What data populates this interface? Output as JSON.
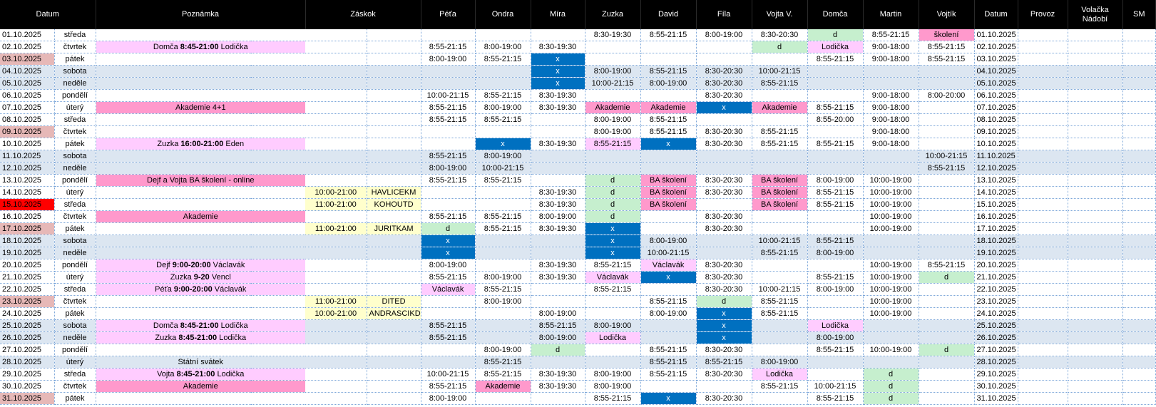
{
  "headers": [
    "Datum",
    "Poznámka",
    "Záskok",
    "Péťa",
    "Ondra",
    "Míra",
    "Zuzka",
    "David",
    "Fíla",
    "Vojta V.",
    "Domča",
    "Martin",
    "Vojtík",
    "Datum",
    "Provoz",
    "Volačka\nNádobí",
    "SM"
  ],
  "colors": {
    "header_bg": "#000000",
    "weekend_bg": "#dce6f1",
    "red": "#ff0000",
    "date_highlight": "#e6b8b7",
    "pink": "#ff99cc",
    "light_pink": "#ffccff",
    "green": "#c6efce",
    "blue": "#0070c0",
    "yellow": "#ffffcc",
    "grid": "#7da7d9"
  },
  "rows": [
    {
      "date": "01.10.2025",
      "day": "středa",
      "cells": [
        "",
        "",
        "",
        "8:30-19:30",
        "8:55-21:15",
        "8:00-19:00",
        "8:30-20:30",
        "d",
        "8:55-21:15",
        "školení",
        ""
      ],
      "styles": [
        "",
        "",
        "",
        "",
        "",
        "",
        "",
        "g",
        "",
        "p",
        ""
      ]
    },
    {
      "date": "02.10.2025",
      "day": "čtvrtek",
      "note": {
        "a": "Domča ",
        "b": "8:45-21:00",
        "c": " Lodička",
        "cls": "c-lpink"
      },
      "cells": [
        "8:55-21:15",
        "8:00-19:00",
        "8:30-19:30",
        "",
        "",
        "",
        "d",
        "Lodička",
        "9:00-18:00",
        "8:55-21:15"
      ],
      "styles": [
        "",
        "",
        "",
        "",
        "",
        "",
        "g",
        "lp",
        "",
        ""
      ]
    },
    {
      "date": "03.10.2025",
      "day": "pátek",
      "dateHL": "hl-date",
      "cells": [
        "8:00-19:00",
        "8:55-21:15",
        "x",
        "",
        "",
        "",
        "",
        "8:55-21:15",
        "9:00-18:00",
        "8:55-21:15"
      ],
      "styles": [
        "",
        "",
        "b",
        "",
        "",
        "",
        "",
        "",
        "",
        ""
      ]
    },
    {
      "date": "04.10.2025",
      "day": "sobota",
      "weekend": true,
      "cells": [
        "",
        "",
        "x",
        "8:00-19:00",
        "8:55-21:15",
        "8:30-20:30",
        "10:00-21:15",
        "",
        "",
        ""
      ],
      "styles": [
        "",
        "",
        "b",
        "",
        "",
        "",
        "",
        "",
        "",
        ""
      ]
    },
    {
      "date": "05.10.2025",
      "day": "neděle",
      "weekend": true,
      "cells": [
        "",
        "",
        "x",
        "10:00-21:15",
        "8:00-19:00",
        "8:30-20:30",
        "8:55-21:15",
        "",
        "",
        ""
      ],
      "styles": [
        "",
        "",
        "b",
        "",
        "",
        "",
        "",
        "",
        "",
        ""
      ]
    },
    {
      "date": "06.10.2025",
      "day": "pondělí",
      "cells": [
        "10:00-21:15",
        "8:55-21:15",
        "8:30-19:30",
        "",
        "",
        "8:30-20:30",
        "",
        "",
        "9:00-18:00",
        "8:00-20:00"
      ],
      "styles": [
        "",
        "",
        "",
        "",
        "",
        "",
        "",
        "",
        "",
        ""
      ]
    },
    {
      "date": "07.10.2025",
      "day": "úterý",
      "note": {
        "a": "Akademie 4+1",
        "b": "",
        "c": "",
        "cls": "c-pink"
      },
      "cells": [
        "8:55-21:15",
        "8:00-19:00",
        "8:30-19:30",
        "Akademie",
        "Akademie",
        "x",
        "Akademie",
        "8:55-21:15",
        "9:00-18:00",
        ""
      ],
      "styles": [
        "",
        "",
        "",
        "p",
        "p",
        "b",
        "p",
        "",
        "",
        ""
      ]
    },
    {
      "date": "08.10.2025",
      "day": "středa",
      "cells": [
        "8:55-21:15",
        "8:55-21:15",
        "",
        "8:00-19:00",
        "8:55-21:15",
        "",
        "",
        "8:55-20:00",
        "9:00-18:00",
        ""
      ],
      "styles": [
        "",
        "",
        "",
        "",
        "",
        "",
        "",
        "",
        "",
        ""
      ]
    },
    {
      "date": "09.10.2025",
      "day": "čtvrtek",
      "dateHL": "hl-date",
      "cells": [
        "",
        "",
        "",
        "8:00-19:00",
        "8:55-21:15",
        "8:30-20:30",
        "8:55-21:15",
        "",
        "9:00-18:00",
        ""
      ],
      "styles": [
        "",
        "",
        "",
        "",
        "",
        "",
        "",
        "",
        "",
        ""
      ]
    },
    {
      "date": "10.10.2025",
      "day": "pátek",
      "note": {
        "a": "Zuzka ",
        "b": "16:00-21:00",
        "c": " Eden",
        "cls": "c-lpink"
      },
      "cells": [
        "",
        "x",
        "8:30-19:30",
        "8:55-21:15",
        "x",
        "8:30-20:30",
        "8:55-21:15",
        "8:55-21:15",
        "9:00-18:00",
        ""
      ],
      "styles": [
        "",
        "b",
        "",
        "lp",
        "b",
        "",
        "",
        "",
        "",
        ""
      ]
    },
    {
      "date": "11.10.2025",
      "day": "sobota",
      "weekend": true,
      "cells": [
        "8:55-21:15",
        "8:00-19:00",
        "",
        "",
        "",
        "",
        "",
        "",
        "",
        "10:00-21:15"
      ],
      "styles": [
        "",
        "",
        "",
        "",
        "",
        "",
        "",
        "",
        "",
        ""
      ]
    },
    {
      "date": "12.10.2025",
      "day": "neděle",
      "weekend": true,
      "cells": [
        "8:00-19:00",
        "10:00-21:15",
        "",
        "",
        "",
        "",
        "",
        "",
        "",
        "8:55-21:15"
      ],
      "styles": [
        "",
        "",
        "",
        "",
        "",
        "",
        "",
        "",
        "",
        ""
      ]
    },
    {
      "date": "13.10.2025",
      "day": "pondělí",
      "note": {
        "a": "Dejf a Vojta BA školení - online",
        "b": "",
        "c": "",
        "cls": "c-pink"
      },
      "cells": [
        "8:55-21:15",
        "8:55-21:15",
        "",
        "d",
        "BA školení",
        "8:30-20:30",
        "BA školení",
        "8:00-19:00",
        "10:00-19:00",
        ""
      ],
      "styles": [
        "",
        "",
        "",
        "g",
        "p",
        "",
        "p",
        "",
        "",
        ""
      ]
    },
    {
      "date": "14.10.2025",
      "day": "úterý",
      "z1": "10:00-21:00",
      "z2": "HAVLICEKM",
      "cells": [
        "",
        "",
        "8:30-19:30",
        "d",
        "BA školení",
        "8:30-20:30",
        "BA školení",
        "8:55-21:15",
        "10:00-19:00",
        ""
      ],
      "styles": [
        "",
        "",
        "",
        "g",
        "p",
        "",
        "p",
        "",
        "",
        ""
      ]
    },
    {
      "date": "15.10.2025",
      "day": "středa",
      "dateHL": "hl-red",
      "z1": "11:00-21:00",
      "z2": "KOHOUTD",
      "cells": [
        "",
        "",
        "8:30-19:30",
        "d",
        "BA školení",
        "",
        "BA školení",
        "8:55-21:15",
        "10:00-19:00",
        ""
      ],
      "styles": [
        "",
        "",
        "",
        "g",
        "p",
        "",
        "p",
        "",
        "",
        ""
      ]
    },
    {
      "date": "16.10.2025",
      "day": "čtvrtek",
      "note": {
        "a": "Akademie",
        "b": "",
        "c": "",
        "cls": "c-pink"
      },
      "cells": [
        "8:55-21:15",
        "8:55-21:15",
        "8:00-19:00",
        "d",
        "",
        "8:30-20:30",
        "",
        "",
        "10:00-19:00",
        ""
      ],
      "styles": [
        "",
        "",
        "",
        "g",
        "",
        "",
        "",
        "",
        "",
        ""
      ]
    },
    {
      "date": "17.10.2025",
      "day": "pátek",
      "dateHL": "hl-date",
      "z1": "11:00-21:00",
      "z2": "JURITKAM",
      "cells": [
        "d",
        "8:55-21:15",
        "8:30-19:30",
        "x",
        "",
        "8:30-20:30",
        "",
        "",
        "10:00-19:00",
        ""
      ],
      "styles": [
        "g",
        "",
        "",
        "b",
        "",
        "",
        "",
        "",
        "",
        ""
      ]
    },
    {
      "date": "18.10.2025",
      "day": "sobota",
      "weekend": true,
      "cells": [
        "x",
        "",
        "",
        "x",
        "8:00-19:00",
        "",
        "10:00-21:15",
        "8:55-21:15",
        "",
        ""
      ],
      "styles": [
        "b",
        "",
        "",
        "b",
        "",
        "",
        "",
        "",
        "",
        ""
      ]
    },
    {
      "date": "19.10.2025",
      "day": "neděle",
      "weekend": true,
      "cells": [
        "x",
        "",
        "",
        "x",
        "10:00-21:15",
        "",
        "8:55-21:15",
        "8:00-19:00",
        "",
        ""
      ],
      "styles": [
        "b",
        "",
        "",
        "b",
        "",
        "",
        "",
        "",
        "",
        ""
      ]
    },
    {
      "date": "20.10.2025",
      "day": "pondělí",
      "note": {
        "a": "Dejf ",
        "b": "9:00-20:00",
        "c": " Václavák",
        "cls": "c-lpink"
      },
      "cells": [
        "8:00-19:00",
        "",
        "8:30-19:30",
        "8:55-21:15",
        "Václavák",
        "8:30-20:30",
        "",
        "",
        "10:00-19:00",
        "8:55-21:15"
      ],
      "styles": [
        "",
        "",
        "",
        "",
        "lp",
        "",
        "",
        "",
        "",
        ""
      ]
    },
    {
      "date": "21.10.2025",
      "day": "úterý",
      "note": {
        "a": "Zuzka ",
        "b": "9-20",
        "c": " Vencl",
        "cls": "c-lpink"
      },
      "cells": [
        "8:55-21:15",
        "8:00-19:00",
        "8:30-19:30",
        "Václavák",
        "x",
        "8:30-20:30",
        "",
        "8:55-21:15",
        "10:00-19:00",
        "d"
      ],
      "styles": [
        "",
        "",
        "",
        "lp",
        "b",
        "",
        "",
        "",
        "",
        "g"
      ]
    },
    {
      "date": "22.10.2025",
      "day": "středa",
      "note": {
        "a": "Péťa ",
        "b": "9:00-20:00",
        "c": " Václavák",
        "cls": "c-lpink"
      },
      "cells": [
        "Václavák",
        "8:55-21:15",
        "",
        "8:55-21:15",
        "",
        "8:30-20:30",
        "10:00-21:15",
        "8:00-19:00",
        "10:00-19:00",
        ""
      ],
      "styles": [
        "lp",
        "",
        "",
        "",
        "",
        "",
        "",
        "",
        "",
        ""
      ]
    },
    {
      "date": "23.10.2025",
      "day": "čtvrtek",
      "dateHL": "hl-date",
      "z1": "11:00-21:00",
      "z2": "DITED",
      "cells": [
        "",
        "8:00-19:00",
        "",
        "",
        "8:55-21:15",
        "d",
        "8:55-21:15",
        "",
        "10:00-19:00",
        ""
      ],
      "styles": [
        "",
        "",
        "",
        "",
        "",
        "g",
        "",
        "",
        "",
        ""
      ]
    },
    {
      "date": "24.10.2025",
      "day": "pátek",
      "z1": "10:00-21:00",
      "z2": "ANDRASCIKD",
      "cells": [
        "",
        "",
        "8:00-19:00",
        "",
        "8:00-19:00",
        "x",
        "8:55-21:15",
        "",
        "10:00-19:00",
        ""
      ],
      "styles": [
        "",
        "",
        "",
        "",
        "",
        "b",
        "",
        "",
        "",
        ""
      ]
    },
    {
      "date": "25.10.2025",
      "day": "sobota",
      "weekend": true,
      "note": {
        "a": "Domča ",
        "b": "8:45-21:00",
        "c": " Lodička",
        "cls": "c-lpink"
      },
      "cells": [
        "8:55-21:15",
        "",
        "8:55-21:15",
        "8:00-19:00",
        "",
        "x",
        "",
        "Lodička",
        "",
        ""
      ],
      "styles": [
        "",
        "",
        "",
        "",
        "",
        "b",
        "",
        "lp",
        "",
        ""
      ]
    },
    {
      "date": "26.10.2025",
      "day": "neděle",
      "weekend": true,
      "note": {
        "a": "Zuzka ",
        "b": "8:45-21:00",
        "c": " Lodička",
        "cls": "c-lpink"
      },
      "cells": [
        "8:55-21:15",
        "",
        "8:00-19:00",
        "Lodička",
        "",
        "x",
        "",
        "8:00-19:00",
        "",
        ""
      ],
      "styles": [
        "",
        "",
        "",
        "lp",
        "",
        "b",
        "",
        "",
        "",
        ""
      ]
    },
    {
      "date": "27.10.2025",
      "day": "pondělí",
      "cells": [
        "",
        "8:00-19:00",
        "d",
        "",
        "8:55-21:15",
        "8:30-20:30",
        "",
        "8:55-21:15",
        "10:00-19:00",
        "d"
      ],
      "styles": [
        "",
        "",
        "g",
        "",
        "",
        "",
        "",
        "",
        "",
        "g"
      ]
    },
    {
      "date": "28.10.2025",
      "day": "úterý",
      "weekend": true,
      "note": {
        "a": "Státní svátek",
        "b": "",
        "c": "",
        "cls": ""
      },
      "cells": [
        "",
        "8:55-21:15",
        "",
        "",
        "8:55-21:15",
        "8:55-21:15",
        "8:00-19:00",
        "",
        "",
        ""
      ],
      "styles": [
        "",
        "",
        "",
        "",
        "",
        "",
        "",
        "",
        "",
        ""
      ]
    },
    {
      "date": "29.10.2025",
      "day": "středa",
      "note": {
        "a": "Vojta ",
        "b": "8:45-21:00",
        "c": " Lodička",
        "cls": "c-lpink"
      },
      "cells": [
        "10:00-21:15",
        "8:55-21:15",
        "8:30-19:30",
        "8:00-19:00",
        "8:55-21:15",
        "8:30-20:30",
        "Lodička",
        "",
        "d",
        ""
      ],
      "styles": [
        "",
        "",
        "",
        "",
        "",
        "",
        "lp",
        "",
        "g",
        ""
      ]
    },
    {
      "date": "30.10.2025",
      "day": "čtvrtek",
      "note": {
        "a": "Akademie",
        "b": "",
        "c": "",
        "cls": "c-pink"
      },
      "cells": [
        "8:55-21:15",
        "Akademie",
        "8:30-19:30",
        "8:00-19:00",
        "",
        "",
        "8:55-21:15",
        "10:00-21:15",
        "d",
        ""
      ],
      "styles": [
        "",
        "p",
        "",
        "",
        "",
        "",
        "",
        "",
        "g",
        ""
      ]
    },
    {
      "date": "31.10.2025",
      "day": "pátek",
      "dateHL": "hl-date",
      "cells": [
        "8:00-19:00",
        "",
        "",
        "8:55-21:15",
        "x",
        "8:30-20:30",
        "",
        "8:55-21:15",
        "d",
        ""
      ],
      "styles": [
        "",
        "",
        "",
        "",
        "b",
        "",
        "",
        "",
        "g",
        ""
      ]
    }
  ]
}
